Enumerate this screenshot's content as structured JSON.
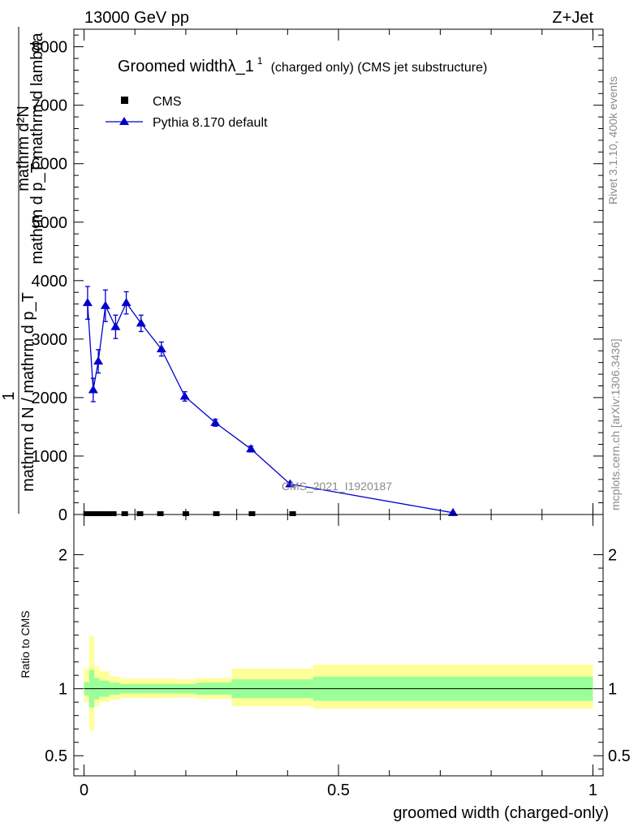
{
  "header": {
    "left": "13000 GeV pp",
    "right": "Z+Jet"
  },
  "side_labels": {
    "right_top": "Rivet 3.1.10,  400k events",
    "right_bottom": "mcplots.cern.ch [arXiv:1306.3436]"
  },
  "chart_data": [
    {
      "type": "line",
      "panel": "main",
      "title_main": "Groomed widthλ_1",
      "title_sup": "1",
      "title_rest": "(charged only) (CMS jet substructure)",
      "ylabel_numerator": "mathrm d²N",
      "ylabel_numerator_2": "mathrm d p_T mathrm d lambda",
      "ylabel_denominator": "mathrm d N / mathrm d p_T",
      "ylabel_one": "1",
      "watermark": "CMS_2021_I1920187",
      "xlim": [
        -0.02,
        1.02
      ],
      "ylim": [
        0,
        8300
      ],
      "y_ticks": [
        0,
        1000,
        2000,
        3000,
        4000,
        5000,
        6000,
        7000,
        8000
      ],
      "y_tick_labels": [
        "0",
        "1000",
        "2000",
        "3000",
        "4000",
        "5000",
        "6000",
        "7000",
        "8000"
      ],
      "legend": {
        "cms": "CMS",
        "pythia": "Pythia 8.170 default"
      },
      "series": [
        {
          "name": "CMS",
          "color": "#000000",
          "marker": "square",
          "x": [
            0.005,
            0.015,
            0.025,
            0.035,
            0.045,
            0.0575,
            0.08,
            0.11,
            0.15,
            0.2,
            0.26,
            0.33,
            0.41
          ],
          "y": [
            0,
            0,
            0,
            0,
            0,
            0,
            0,
            0,
            0,
            0,
            0,
            0,
            0
          ]
        },
        {
          "name": "Pythia 8.170 default",
          "color": "#0000cc",
          "marker": "triangle",
          "x": [
            0.007,
            0.018,
            0.028,
            0.042,
            0.062,
            0.083,
            0.112,
            0.152,
            0.198,
            0.258,
            0.328,
            0.405,
            0.725
          ],
          "y": [
            3620,
            2130,
            2620,
            3570,
            3210,
            3620,
            3270,
            2830,
            2020,
            1570,
            1120,
            520,
            30
          ],
          "err": [
            280,
            200,
            200,
            270,
            200,
            190,
            140,
            120,
            80,
            60,
            50,
            30,
            5
          ]
        }
      ]
    },
    {
      "type": "area",
      "panel": "ratio",
      "ylabel": "Ratio to CMS",
      "xlabel": "groomed width (charged-only)",
      "xlim": [
        -0.02,
        1.02
      ],
      "ylim": [
        0.35,
        2.3
      ],
      "x_ticks": [
        0,
        0.5,
        1
      ],
      "x_tick_labels": [
        "0",
        "0.5",
        "1"
      ],
      "y_ticks": [
        0.5,
        1,
        2
      ],
      "y_tick_labels": [
        "0.5",
        "1",
        "2"
      ],
      "reference": 1,
      "bands": [
        {
          "x0": 0.0,
          "x1": 0.01,
          "inner": [
            0.95,
            1.05
          ],
          "outer": [
            0.9,
            1.15
          ]
        },
        {
          "x0": 0.01,
          "x1": 0.02,
          "inner": [
            0.86,
            1.14
          ],
          "outer": [
            0.69,
            1.39
          ]
        },
        {
          "x0": 0.02,
          "x1": 0.03,
          "inner": [
            0.92,
            1.08
          ],
          "outer": [
            0.87,
            1.17
          ]
        },
        {
          "x0": 0.03,
          "x1": 0.05,
          "inner": [
            0.94,
            1.06
          ],
          "outer": [
            0.9,
            1.13
          ]
        },
        {
          "x0": 0.05,
          "x1": 0.07,
          "inner": [
            0.955,
            1.045
          ],
          "outer": [
            0.92,
            1.09
          ]
        },
        {
          "x0": 0.07,
          "x1": 0.12,
          "inner": [
            0.965,
            1.035
          ],
          "outer": [
            0.93,
            1.075
          ]
        },
        {
          "x0": 0.12,
          "x1": 0.18,
          "inner": [
            0.965,
            1.035
          ],
          "outer": [
            0.93,
            1.075
          ]
        },
        {
          "x0": 0.18,
          "x1": 0.22,
          "inner": [
            0.965,
            1.035
          ],
          "outer": [
            0.935,
            1.07
          ]
        },
        {
          "x0": 0.22,
          "x1": 0.29,
          "inner": [
            0.955,
            1.045
          ],
          "outer": [
            0.925,
            1.08
          ]
        },
        {
          "x0": 0.29,
          "x1": 0.45,
          "inner": [
            0.93,
            1.07
          ],
          "outer": [
            0.87,
            1.15
          ]
        },
        {
          "x0": 0.45,
          "x1": 1.0,
          "inner": [
            0.91,
            1.09
          ],
          "outer": [
            0.85,
            1.18
          ]
        }
      ]
    }
  ],
  "colors": {
    "inner_band": "#99ff99",
    "outer_band": "#ffff99",
    "mc_line": "#0000cc",
    "data": "#000000"
  }
}
